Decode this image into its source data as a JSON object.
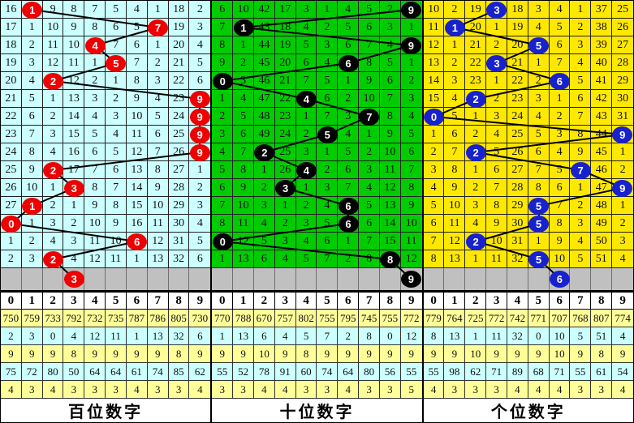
{
  "colors": {
    "hundreds_bg": "#ccffff",
    "tens_bg": "#00cc00",
    "units_bg": "#ffe800",
    "gray_row": "#c0c0c0",
    "stat_yellow": "#ffff99",
    "stat_cyan": "#ccffff",
    "ball_red": "#ee0000",
    "ball_black": "#000000",
    "ball_blue": "#1822cc",
    "trend_line": "#000000"
  },
  "col_header": [
    "0",
    "1",
    "2",
    "3",
    "4",
    "5",
    "6",
    "7",
    "8",
    "9"
  ],
  "panels": [
    {
      "title": "百位数字",
      "bg": "#ccffff",
      "ball_color": "#ee0000",
      "rows": [
        [
          16,
          null,
          9,
          8,
          7,
          5,
          4,
          1,
          18,
          2
        ],
        [
          17,
          1,
          10,
          9,
          8,
          6,
          5,
          null,
          19,
          3
        ],
        [
          18,
          2,
          11,
          10,
          null,
          7,
          6,
          1,
          20,
          4
        ],
        [
          19,
          3,
          12,
          11,
          1,
          null,
          7,
          2,
          21,
          5
        ],
        [
          20,
          4,
          null,
          12,
          2,
          1,
          8,
          3,
          22,
          6
        ],
        [
          21,
          5,
          1,
          13,
          3,
          2,
          9,
          4,
          23,
          null
        ],
        [
          22,
          6,
          2,
          14,
          4,
          3,
          10,
          5,
          24,
          null
        ],
        [
          23,
          7,
          3,
          15,
          5,
          4,
          11,
          6,
          25,
          null
        ],
        [
          24,
          8,
          4,
          16,
          6,
          5,
          12,
          7,
          26,
          null
        ],
        [
          25,
          9,
          null,
          17,
          7,
          6,
          13,
          8,
          27,
          1
        ],
        [
          26,
          10,
          1,
          null,
          8,
          7,
          14,
          9,
          28,
          2
        ],
        [
          27,
          null,
          2,
          1,
          9,
          8,
          15,
          10,
          29,
          3
        ],
        [
          null,
          1,
          3,
          2,
          10,
          9,
          16,
          11,
          30,
          4
        ],
        [
          1,
          2,
          4,
          3,
          11,
          10,
          null,
          12,
          31,
          5
        ],
        [
          2,
          3,
          null,
          4,
          12,
          11,
          1,
          13,
          32,
          6
        ]
      ],
      "ball_cols": [
        1,
        7,
        4,
        5,
        2,
        9,
        9,
        9,
        9,
        2,
        3,
        1,
        0,
        6,
        2
      ],
      "gray_ball_col": 3,
      "stats": [
        [
          "750",
          "759",
          "733",
          "792",
          "732",
          "735",
          "787",
          "786",
          "805",
          "730"
        ],
        [
          "2",
          "3",
          "0",
          "4",
          "12",
          "11",
          "1",
          "13",
          "32",
          "6"
        ],
        [
          "9",
          "9",
          "9",
          "8",
          "9",
          "9",
          "9",
          "9",
          "8",
          "9"
        ],
        [
          "75",
          "72",
          "80",
          "50",
          "64",
          "64",
          "61",
          "74",
          "85",
          "62"
        ],
        [
          "4",
          "3",
          "4",
          "3",
          "3",
          "3",
          "4",
          "3",
          "3",
          "4"
        ]
      ]
    },
    {
      "title": "十位数字",
      "bg": "#00cc00",
      "ball_color": "#000000",
      "rows": [
        [
          6,
          10,
          42,
          17,
          3,
          1,
          4,
          5,
          2,
          null
        ],
        [
          7,
          null,
          43,
          18,
          4,
          2,
          5,
          6,
          3,
          1
        ],
        [
          8,
          1,
          44,
          19,
          5,
          3,
          6,
          7,
          4,
          null
        ],
        [
          9,
          2,
          45,
          20,
          6,
          4,
          null,
          8,
          5,
          1
        ],
        [
          null,
          3,
          46,
          21,
          7,
          5,
          1,
          9,
          6,
          2
        ],
        [
          1,
          4,
          47,
          22,
          null,
          6,
          2,
          10,
          7,
          3
        ],
        [
          2,
          5,
          48,
          23,
          1,
          7,
          3,
          null,
          8,
          4
        ],
        [
          3,
          6,
          49,
          24,
          2,
          null,
          4,
          1,
          9,
          5
        ],
        [
          4,
          7,
          null,
          25,
          3,
          1,
          5,
          2,
          10,
          6
        ],
        [
          5,
          8,
          1,
          26,
          null,
          2,
          6,
          3,
          11,
          7
        ],
        [
          6,
          9,
          2,
          null,
          1,
          3,
          7,
          4,
          12,
          8
        ],
        [
          7,
          10,
          3,
          1,
          2,
          4,
          null,
          5,
          13,
          9
        ],
        [
          8,
          11,
          4,
          2,
          3,
          5,
          null,
          6,
          14,
          10
        ],
        [
          null,
          12,
          5,
          3,
          4,
          6,
          1,
          7,
          15,
          11
        ],
        [
          1,
          13,
          6,
          4,
          5,
          7,
          2,
          8,
          null,
          12
        ]
      ],
      "ball_cols": [
        9,
        1,
        9,
        6,
        0,
        4,
        7,
        5,
        2,
        4,
        3,
        6,
        6,
        0,
        8
      ],
      "gray_ball_col": 9,
      "stats": [
        [
          "770",
          "788",
          "670",
          "757",
          "802",
          "755",
          "795",
          "745",
          "755",
          "772"
        ],
        [
          "1",
          "13",
          "6",
          "4",
          "5",
          "7",
          "2",
          "8",
          "0",
          "12"
        ],
        [
          "9",
          "9",
          "10",
          "9",
          "8",
          "9",
          "9",
          "9",
          "9",
          "9"
        ],
        [
          "55",
          "52",
          "78",
          "91",
          "60",
          "74",
          "64",
          "80",
          "56",
          "55"
        ],
        [
          "3",
          "3",
          "4",
          "4",
          "3",
          "3",
          "4",
          "3",
          "3",
          "5"
        ]
      ]
    },
    {
      "title": "个位数字",
      "bg": "#ffe800",
      "ball_color": "#1822cc",
      "rows": [
        [
          10,
          2,
          19,
          null,
          18,
          3,
          4,
          1,
          37,
          25
        ],
        [
          11,
          null,
          20,
          1,
          19,
          4,
          5,
          2,
          38,
          26
        ],
        [
          12,
          1,
          21,
          2,
          20,
          null,
          6,
          3,
          39,
          27
        ],
        [
          13,
          2,
          22,
          null,
          21,
          1,
          7,
          4,
          40,
          28
        ],
        [
          14,
          3,
          23,
          1,
          22,
          2,
          null,
          5,
          41,
          29
        ],
        [
          15,
          4,
          null,
          2,
          23,
          3,
          1,
          6,
          42,
          30
        ],
        [
          null,
          5,
          1,
          3,
          24,
          4,
          2,
          7,
          43,
          31
        ],
        [
          1,
          6,
          2,
          4,
          25,
          5,
          3,
          8,
          44,
          null
        ],
        [
          2,
          7,
          null,
          5,
          26,
          6,
          4,
          9,
          45,
          1
        ],
        [
          3,
          8,
          1,
          6,
          27,
          7,
          5,
          null,
          46,
          2
        ],
        [
          4,
          9,
          2,
          7,
          28,
          8,
          6,
          1,
          47,
          null
        ],
        [
          5,
          10,
          3,
          8,
          29,
          null,
          7,
          2,
          48,
          1
        ],
        [
          6,
          11,
          4,
          9,
          30,
          null,
          8,
          3,
          49,
          2
        ],
        [
          7,
          12,
          null,
          10,
          31,
          1,
          9,
          4,
          50,
          3
        ],
        [
          8,
          13,
          1,
          11,
          32,
          null,
          10,
          5,
          51,
          4
        ]
      ],
      "ball_cols": [
        3,
        1,
        5,
        3,
        6,
        2,
        0,
        9,
        2,
        7,
        9,
        5,
        5,
        2,
        5
      ],
      "gray_ball_col": 6,
      "stats": [
        [
          "779",
          "764",
          "725",
          "772",
          "742",
          "771",
          "707",
          "768",
          "807",
          "774"
        ],
        [
          "8",
          "13",
          "1",
          "11",
          "32",
          "0",
          "10",
          "5",
          "51",
          "4"
        ],
        [
          "9",
          "9",
          "10",
          "9",
          "9",
          "9",
          "10",
          "9",
          "8",
          "9"
        ],
        [
          "55",
          "98",
          "62",
          "71",
          "89",
          "68",
          "71",
          "55",
          "61",
          "54"
        ],
        [
          "4",
          "3",
          "3",
          "3",
          "4",
          "4",
          "4",
          "3",
          "3",
          "4"
        ]
      ]
    }
  ]
}
